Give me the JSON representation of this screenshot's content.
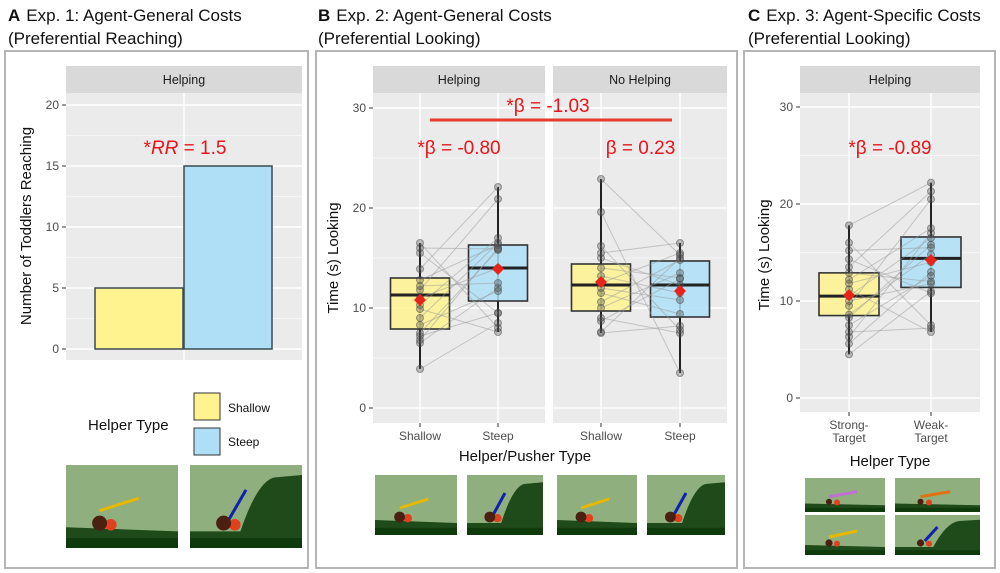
{
  "colors": {
    "shallow": "#fff38f",
    "steep": "#aedff7",
    "annotation": "#e8141a",
    "mean": "#e8241a",
    "panel_bg": "#ebebeb",
    "strip_bg": "#d9d9d9"
  },
  "panels": [
    {
      "letter": "A",
      "title_line1": "Exp. 1: Agent-General Costs",
      "title_line2": "(Preferential Reaching)"
    },
    {
      "letter": "B",
      "title_line1": "Exp. 2: Agent-General Costs",
      "title_line2": "(Preferential Looking)"
    },
    {
      "letter": "C",
      "title_line1": "Exp. 3: Agent-Specific Costs",
      "title_line2": "(Preferential Looking)"
    }
  ],
  "chart_data": [
    {
      "type": "bar",
      "facet": "Helping",
      "categories": [
        "Shallow",
        "Steep"
      ],
      "values": [
        5,
        15
      ],
      "ylabel": "Number of Toddlers Reaching",
      "ylim": [
        0,
        20
      ],
      "yticks": [
        "0",
        "5",
        "10",
        "15",
        "20"
      ],
      "annotation": {
        "prefix": "*",
        "stat": "RR",
        "rest": " = 1.5"
      },
      "legend": {
        "title": "Helper Type",
        "entries": [
          "Shallow",
          "Steep"
        ],
        "placement": "bottom"
      },
      "grid": true
    },
    {
      "type": "boxplot",
      "xlabel": "Helper/Pusher Type",
      "ylabel": "Time (s) Looking",
      "ylim": [
        0,
        30
      ],
      "yticks": [
        "0",
        "10",
        "20",
        "30"
      ],
      "grid": true,
      "facets": [
        {
          "name": "Helping",
          "categories": [
            "Shallow",
            "Steep"
          ],
          "boxes": [
            {
              "min": 3.9,
              "q1": 7.9,
              "median": 11.3,
              "q3": 13.0,
              "max": 16.5,
              "mean": 10.8
            },
            {
              "min": 7.6,
              "q1": 10.7,
              "median": 14.0,
              "q3": 16.3,
              "max": 22.1,
              "mean": 13.9
            }
          ],
          "pairs": [
            [
              3.9,
              8.5
            ],
            [
              6.5,
              12.0
            ],
            [
              6.8,
              16.0
            ],
            [
              7.2,
              9.5
            ],
            [
              7.5,
              15.8
            ],
            [
              8.3,
              11.7
            ],
            [
              9.0,
              16.5
            ],
            [
              9.9,
              7.6
            ],
            [
              10.3,
              17.0
            ],
            [
              11.0,
              14.0
            ],
            [
              11.8,
              20.9
            ],
            [
              12.2,
              12.5
            ],
            [
              12.8,
              16.3
            ],
            [
              13.9,
              22.1
            ],
            [
              15.5,
              9.5
            ],
            [
              16.0,
              15.9
            ],
            [
              16.5,
              8.0
            ]
          ],
          "annotation": "*β = -0.80"
        },
        {
          "name": "No Helping",
          "categories": [
            "Shallow",
            "Steep"
          ],
          "boxes": [
            {
              "min": 7.5,
              "q1": 9.7,
              "median": 12.3,
              "q3": 14.4,
              "max": 22.9,
              "mean": 12.6
            },
            {
              "min": 3.5,
              "q1": 9.1,
              "median": 12.3,
              "q3": 14.7,
              "max": 16.5,
              "mean": 11.7
            }
          ],
          "pairs": [
            [
              7.5,
              8.2
            ],
            [
              7.6,
              15.0
            ],
            [
              8.7,
              12.9
            ],
            [
              9.0,
              7.5
            ],
            [
              10.0,
              13.5
            ],
            [
              10.6,
              14.8
            ],
            [
              11.5,
              9.4
            ],
            [
              12.0,
              10.8
            ],
            [
              12.5,
              15.5
            ],
            [
              13.2,
              11.5
            ],
            [
              14.0,
              13.0
            ],
            [
              15.0,
              12.3
            ],
            [
              15.5,
              16.5
            ],
            [
              16.2,
              7.8
            ],
            [
              19.6,
              3.5
            ],
            [
              22.9,
              15.3
            ]
          ],
          "annotation": "β = 0.23"
        }
      ],
      "interaction_annotation": "*β = -1.03"
    },
    {
      "type": "boxplot",
      "facet": "Helping",
      "xlabel": "Helper Type",
      "ylabel": "Time (s) Looking",
      "ylim": [
        0,
        30
      ],
      "yticks": [
        "0",
        "10",
        "20",
        "30"
      ],
      "categories": [
        "Strong-",
        "Weak-"
      ],
      "categories_line2": [
        "Target",
        "Target"
      ],
      "grid": true,
      "boxes": [
        {
          "min": 4.5,
          "q1": 8.5,
          "median": 10.5,
          "q3": 12.9,
          "max": 17.8,
          "mean": 10.6
        },
        {
          "min": 6.8,
          "q1": 11.4,
          "median": 14.4,
          "q3": 16.6,
          "max": 22.2,
          "mean": 14.2
        }
      ],
      "pairs": [
        [
          4.5,
          11.0
        ],
        [
          5.6,
          13.0
        ],
        [
          6.3,
          17.0
        ],
        [
          6.8,
          7.2
        ],
        [
          7.5,
          12.6
        ],
        [
          8.3,
          15.8
        ],
        [
          8.6,
          14.8
        ],
        [
          9.5,
          20.5
        ],
        [
          10.0,
          11.8
        ],
        [
          10.5,
          16.5
        ],
        [
          11.2,
          6.8
        ],
        [
          11.8,
          14.0
        ],
        [
          12.2,
          17.5
        ],
        [
          12.9,
          12.0
        ],
        [
          13.5,
          21.3
        ],
        [
          14.3,
          10.8
        ],
        [
          15.2,
          15.5
        ],
        [
          16.0,
          7.5
        ],
        [
          17.8,
          22.2
        ]
      ],
      "annotation": "*β = -0.89"
    }
  ]
}
